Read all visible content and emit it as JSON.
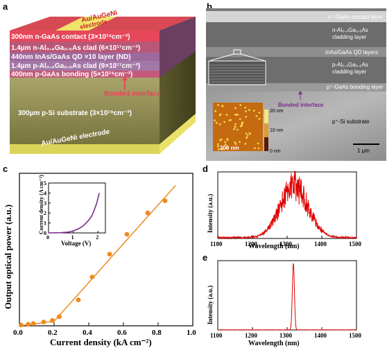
{
  "panels": {
    "a": {
      "label": "a",
      "top_electrode": "Au/AuGeNi",
      "top_electrode_sub": "electrode",
      "layers": [
        "300nm n-GaAs contact (3×10¹⁸cm⁻³)",
        "1.4µm n-Al₀.₄Ga₀.₆As clad (6×10¹⁷cm⁻³)",
        "440nm InAs/GaAs QD ×10 layer (ND)",
        "1.4µm p-Al₀.₄Ga₀.₆As clad (9×10¹⁷cm⁻³)",
        "400nm p-GaAs bonding (5×10¹⁹cm⁻³)"
      ],
      "bonded_interface": "Bonded interface",
      "substrate": "300µm p-Si substrate (3×10¹⁹cm⁻³)",
      "bottom_electrode": "Au/AuGeNi electrode",
      "colors": {
        "top": "#e8455a",
        "purple": "#8a6a9a",
        "substrate": "#8e8a55",
        "gold": "#e9e16a"
      }
    },
    "b": {
      "label": "b",
      "layers": [
        "n⁺-GaAs contact layer",
        "n-Al₀.₄Ga₀.₆As",
        "cladding layer",
        "InAs/GaAs QD layers",
        "p-Al₀.₄Ga₀.₆As",
        "cladding layer",
        "p⁺-GaAs bonding layer"
      ],
      "bonded_interface": "Bonded interface",
      "substrate": "p⁺-Si substrate",
      "scale_bar": "1 µm",
      "afm_scale": "200 nm",
      "afm_colorbar": [
        "20 nm",
        "10 nm",
        "0 nm"
      ]
    },
    "c": {
      "label": "c",
      "xlabel": "Current density (kA cm⁻²)",
      "ylabel": "Output optical power (a.u.)",
      "xticks": [
        "0.0",
        "0.2",
        "0.4",
        "0.6",
        "0.8",
        "1.0"
      ],
      "inset": {
        "xlabel": "Voltage (V)",
        "ylabel": "Current density (A cm⁻²)",
        "xticks": [
          "0",
          "1",
          "2"
        ],
        "yticks": [
          "0",
          "1",
          "2",
          "3",
          "4",
          "5"
        ]
      }
    },
    "d": {
      "label": "d",
      "xlabel": "Wavelength (nm)",
      "ylabel": "Intensity (a.u.)",
      "xticks": [
        "1100",
        "1200",
        "1300",
        "1400",
        "1500"
      ]
    },
    "e": {
      "label": "e",
      "xlabel": "Wavelength (nm)",
      "ylabel": "Intensity (a.u.)",
      "xticks": [
        "1100",
        "1200",
        "1300",
        "1400",
        "1500"
      ]
    }
  },
  "chart_data": [
    {
      "type": "scatter",
      "panel": "c",
      "xlim": [
        0,
        1.0
      ],
      "ylim": [
        0,
        1.0
      ],
      "points": [
        [
          0.01,
          0.005
        ],
        [
          0.05,
          0.01
        ],
        [
          0.08,
          0.015
        ],
        [
          0.14,
          0.025
        ],
        [
          0.19,
          0.035
        ],
        [
          0.23,
          0.06
        ],
        [
          0.34,
          0.17
        ],
        [
          0.42,
          0.32
        ],
        [
          0.52,
          0.47
        ],
        [
          0.62,
          0.6
        ],
        [
          0.74,
          0.74
        ],
        [
          0.84,
          0.82
        ]
      ],
      "fit_segments": [
        [
          [
            0.0,
            0.0
          ],
          [
            0.2,
            0.03
          ]
        ],
        [
          [
            0.2,
            0.03
          ],
          [
            0.9,
            0.92
          ]
        ]
      ],
      "color": "#ee8a1e"
    },
    {
      "type": "line",
      "panel": "c-inset",
      "xlim": [
        0,
        2.3
      ],
      "ylim": [
        0,
        5
      ],
      "x": [
        0,
        0.5,
        0.8,
        1.0,
        1.2,
        1.4,
        1.6,
        1.75,
        1.85,
        1.95,
        2.05
      ],
      "y": [
        0,
        0.02,
        0.08,
        0.2,
        0.4,
        0.7,
        1.2,
        1.7,
        2.3,
        3.0,
        4.0
      ],
      "color": "#7b2a8e"
    },
    {
      "type": "line",
      "panel": "d",
      "xlim": [
        1100,
        1500
      ],
      "peak_center": 1320,
      "peak_width": 40,
      "color": "#e00000"
    },
    {
      "type": "line",
      "panel": "e",
      "xlim": [
        1100,
        1500
      ],
      "peak_center": 1318,
      "peak_width": 3,
      "color": "#e00000"
    }
  ]
}
